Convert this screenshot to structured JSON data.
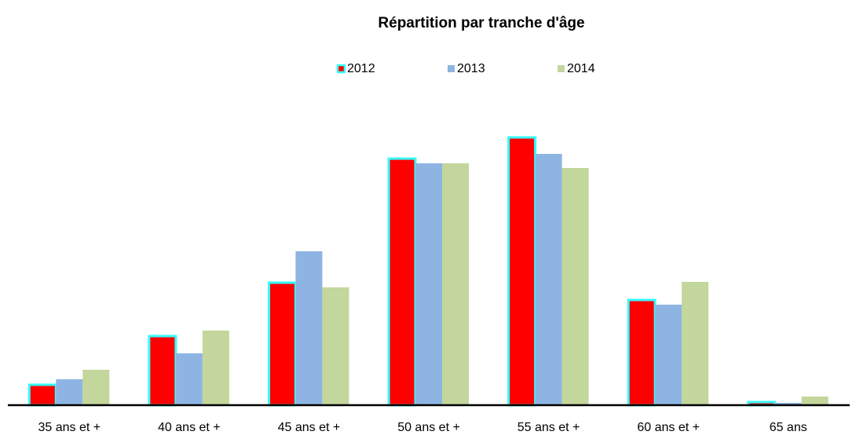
{
  "chart_data": {
    "type": "bar",
    "title": "Répartition par tranche d'âge",
    "categories": [
      "35 ans et +",
      "40 ans et +",
      "45 ans et +",
      "50 ans et +",
      "55 ans et +",
      "60 ans et +",
      "65 ans"
    ],
    "series": [
      {
        "name": "2012",
        "color": "#ff0000",
        "edge_color": "#33ffff",
        "values": [
          26,
          88,
          156,
          314,
          341,
          134,
          4
        ]
      },
      {
        "name": "2013",
        "color": "#8eb4e3",
        "values": [
          33,
          66,
          196,
          308,
          320,
          128,
          3
        ]
      },
      {
        "name": "2014",
        "color": "#c3d69b",
        "values": [
          45,
          95,
          150,
          308,
          302,
          157,
          11
        ]
      }
    ],
    "ylim": [
      0,
      360
    ]
  }
}
